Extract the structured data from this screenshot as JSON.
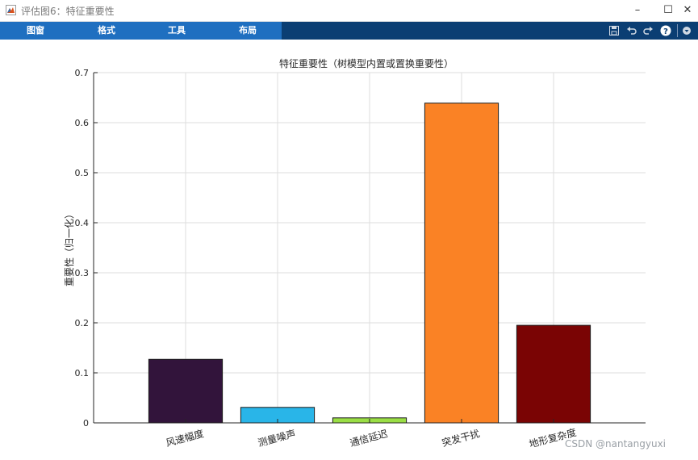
{
  "window": {
    "title": "评估图6：特征重要性",
    "controls": {
      "minimize": "–",
      "maximize": "☐",
      "close": "✕"
    }
  },
  "toolstrip": {
    "tabs": [
      "图窗",
      "格式",
      "工具",
      "布局"
    ],
    "icons": [
      "save-icon",
      "undo-icon",
      "redo-icon",
      "help-icon",
      "expand-icon"
    ]
  },
  "chart_data": {
    "type": "bar",
    "title": "特征重要性（树模型内置或置换重要性）",
    "xlabel": "",
    "ylabel": "重要性（归一化）",
    "categories": [
      "风速幅度",
      "测量噪声",
      "通信延迟",
      "突发干扰",
      "地形复杂度"
    ],
    "values": [
      0.127,
      0.031,
      0.01,
      0.639,
      0.195
    ],
    "colors": [
      "#32143b",
      "#29b5e8",
      "#9ade45",
      "#fa8225",
      "#7a0404"
    ],
    "ylim": [
      0,
      0.7
    ],
    "yticks": [
      "0",
      "0.1",
      "0.2",
      "0.3",
      "0.4",
      "0.5",
      "0.6",
      "0.7"
    ],
    "grid": true
  },
  "watermark": "CSDN @nantangyuxi"
}
